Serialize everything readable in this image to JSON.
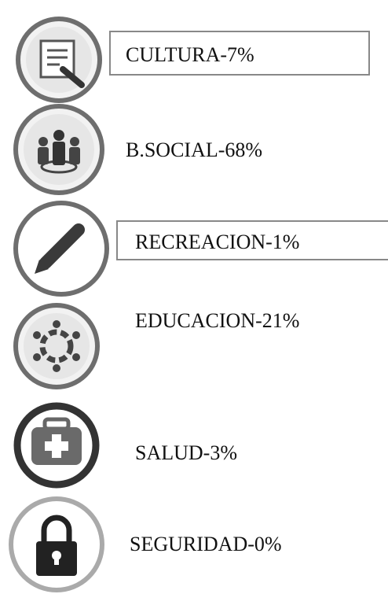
{
  "items": [
    {
      "label": "CULTURA-7%"
    },
    {
      "label": "B.SOCIAL-68%"
    },
    {
      "label": "RECREACION-1%"
    },
    {
      "label": "EDUCACION-21%"
    },
    {
      "label": "SALUD-3%"
    },
    {
      "label": "SEGURIDAD-0%"
    }
  ]
}
